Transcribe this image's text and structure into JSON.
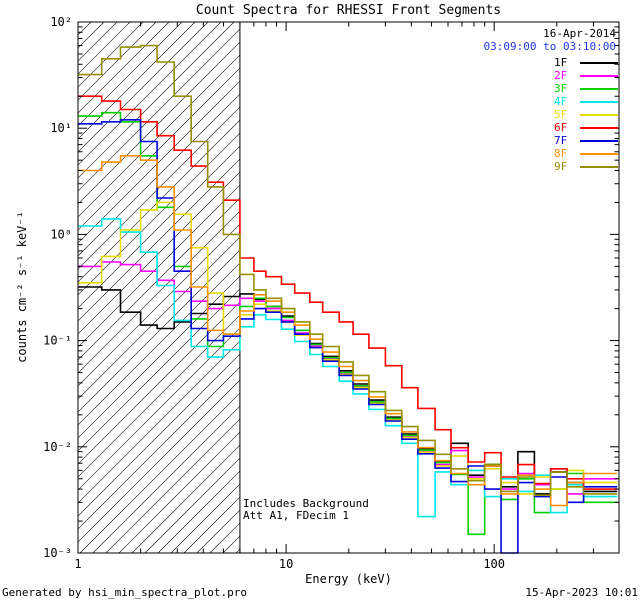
{
  "title": "Count Spectra for RHESSI Front Segments",
  "header": {
    "date": "16-Apr-2014",
    "time_range": "03:09:00 to 03:10:00",
    "time_color": "#2233ee"
  },
  "annotations": {
    "line1": "Includes Background",
    "line2": "Att A1, FDecim 1"
  },
  "footer": {
    "left": "Generated by hsi_min_spectra_plot.pro",
    "right": "15-Apr-2023 10:01"
  },
  "chart_data": {
    "type": "line",
    "subtype": "step-histogram",
    "x_scale": "log",
    "y_scale": "log",
    "grid": false,
    "legend_position": "top-right-inside",
    "xlabel": "Energy (keV)",
    "ylabel": "counts cm⁻² s⁻¹ keV⁻¹",
    "xlim": [
      1,
      398
    ],
    "ylim": [
      0.001,
      100
    ],
    "x_ticks": [
      {
        "value": 1,
        "label": "1"
      },
      {
        "value": 10,
        "label": "10"
      },
      {
        "value": 100,
        "label": "100"
      }
    ],
    "y_ticks": [
      {
        "value": 0.001,
        "label": "10⁻³"
      },
      {
        "value": 0.01,
        "label": "10⁻²"
      },
      {
        "value": 0.1,
        "label": "10⁻¹"
      },
      {
        "value": 1,
        "label": "10⁰"
      },
      {
        "value": 10,
        "label": "10¹"
      },
      {
        "value": 100,
        "label": "10²"
      }
    ],
    "shaded_region": {
      "from": 1,
      "to": 6,
      "style": "diagonal-hatch"
    },
    "vline": 6,
    "bin_edges": [
      1,
      1.3,
      1.6,
      2,
      2.4,
      2.9,
      3.5,
      4.2,
      5,
      6,
      7,
      8,
      9.5,
      11,
      13,
      15,
      18,
      21,
      25,
      30,
      36,
      43,
      52,
      62,
      75,
      90,
      108,
      130,
      156,
      187,
      224,
      269,
      390
    ],
    "series": [
      {
        "name": "1F",
        "color": "#000000",
        "values": [
          0.32,
          0.3,
          0.185,
          0.14,
          0.13,
          0.15,
          0.18,
          0.22,
          0.26,
          0.275,
          0.245,
          0.21,
          0.17,
          0.125,
          0.094,
          0.071,
          0.052,
          0.039,
          0.0275,
          0.019,
          0.0132,
          0.0096,
          0.0072,
          0.0108,
          0.0054,
          0.0068,
          0.0042,
          0.009,
          0.0036,
          0.0058,
          0.0046,
          0.0038
        ]
      },
      {
        "name": "2F",
        "color": "#ff00ff",
        "values": [
          0.5,
          0.55,
          0.52,
          0.45,
          0.37,
          0.29,
          0.235,
          0.2,
          0.215,
          0.25,
          0.235,
          0.2,
          0.155,
          0.118,
          0.089,
          0.067,
          0.049,
          0.0365,
          0.026,
          0.018,
          0.0125,
          0.009,
          0.0068,
          0.0092,
          0.0052,
          0.0066,
          0.004,
          0.0056,
          0.0044,
          0.0062,
          0.0036,
          0.005
        ]
      },
      {
        "name": "3F",
        "color": "#00d000",
        "values": [
          13,
          14,
          11.5,
          5.5,
          1.8,
          0.5,
          0.16,
          0.088,
          0.115,
          0.21,
          0.25,
          0.21,
          0.165,
          0.125,
          0.092,
          0.069,
          0.05,
          0.0375,
          0.0265,
          0.0185,
          0.0128,
          0.0093,
          0.0071,
          0.0055,
          0.0015,
          0.0068,
          0.0032,
          0.005,
          0.0024,
          0.004,
          0.0056,
          0.003
        ]
      },
      {
        "name": "4F",
        "color": "#00e8e8",
        "values": [
          1.2,
          1.4,
          1.05,
          0.68,
          0.33,
          0.155,
          0.088,
          0.07,
          0.082,
          0.135,
          0.175,
          0.158,
          0.128,
          0.098,
          0.074,
          0.057,
          0.0415,
          0.0315,
          0.0225,
          0.0158,
          0.0108,
          0.0022,
          0.0058,
          0.0044,
          0.006,
          0.0034,
          0.005,
          0.0038,
          0.0054,
          0.0024,
          0.0044,
          0.0034
        ]
      },
      {
        "name": "5F",
        "color": "#e8dc00",
        "values": [
          0.35,
          0.62,
          1.1,
          1.7,
          2.0,
          1.55,
          0.75,
          0.28,
          0.115,
          0.175,
          0.22,
          0.19,
          0.15,
          0.113,
          0.086,
          0.066,
          0.048,
          0.036,
          0.0255,
          0.0178,
          0.0122,
          0.0089,
          0.0066,
          0.0082,
          0.005,
          0.0062,
          0.0046,
          0.0036,
          0.0052,
          0.004,
          0.006,
          0.0046
        ]
      },
      {
        "name": "6F",
        "color": "#ff0000",
        "values": [
          20,
          18,
          15,
          11.5,
          8.5,
          6.2,
          4.4,
          3.1,
          2.1,
          0.6,
          0.45,
          0.4,
          0.34,
          0.28,
          0.23,
          0.185,
          0.15,
          0.115,
          0.085,
          0.058,
          0.036,
          0.023,
          0.0145,
          0.0098,
          0.0072,
          0.0088,
          0.0052,
          0.0068,
          0.0045,
          0.0062,
          0.005,
          0.004
        ]
      },
      {
        "name": "7F",
        "color": "#0000dd",
        "values": [
          11,
          11.5,
          12,
          7.5,
          2.2,
          0.45,
          0.13,
          0.1,
          0.11,
          0.16,
          0.2,
          0.185,
          0.15,
          0.115,
          0.086,
          0.064,
          0.047,
          0.035,
          0.025,
          0.0175,
          0.0118,
          0.0086,
          0.0063,
          0.0047,
          0.0066,
          0.004,
          0.001,
          0.0046,
          0.0034,
          0.0052,
          0.003,
          0.0042
        ]
      },
      {
        "name": "8F",
        "color": "#ff9000",
        "values": [
          4.0,
          4.8,
          5.5,
          5.0,
          2.8,
          1.1,
          0.32,
          0.125,
          0.115,
          0.19,
          0.27,
          0.235,
          0.185,
          0.14,
          0.103,
          0.078,
          0.057,
          0.042,
          0.0295,
          0.0205,
          0.0138,
          0.0098,
          0.0074,
          0.0056,
          0.0044,
          0.0066,
          0.0036,
          0.0054,
          0.004,
          0.0028,
          0.0046,
          0.0056
        ]
      },
      {
        "name": "9F",
        "color": "#968f00",
        "values": [
          32,
          45,
          58,
          60,
          42,
          20,
          7.5,
          2.8,
          1.0,
          0.42,
          0.3,
          0.25,
          0.2,
          0.15,
          0.115,
          0.088,
          0.063,
          0.047,
          0.033,
          0.022,
          0.0155,
          0.0115,
          0.0085,
          0.0062,
          0.0048,
          0.0068,
          0.0038,
          0.0052,
          0.0035,
          0.0058,
          0.0042,
          0.0036
        ]
      }
    ]
  }
}
